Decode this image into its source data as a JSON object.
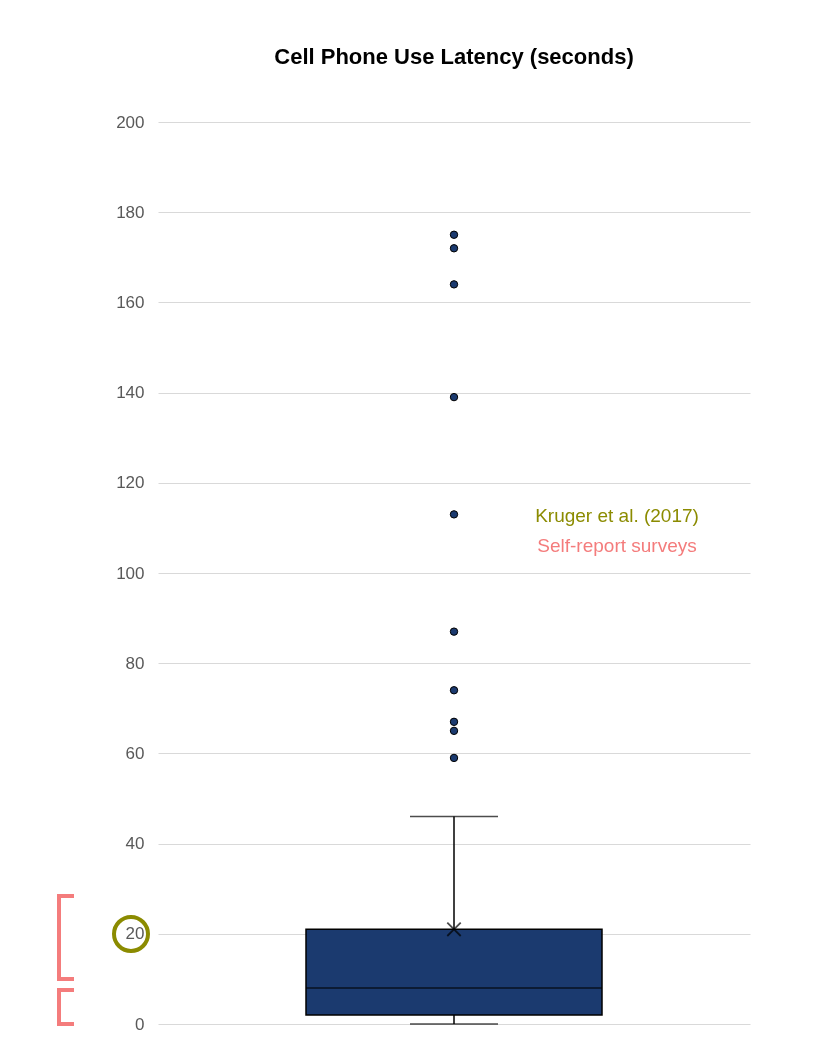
{
  "chart_data": {
    "type": "box",
    "title": "Cell Phone Use Latency (seconds)",
    "categories": [
      null
    ],
    "color": "#1b3a6f",
    "boxes": [
      {
        "low": 0,
        "q1": 2,
        "median": 8,
        "q3": 21,
        "high": 46,
        "mean": 21,
        "outliers": [
          175,
          172,
          164,
          139,
          113,
          87,
          74,
          67,
          65,
          59
        ]
      }
    ],
    "ylim": [
      0,
      200
    ],
    "yticks": [
      0,
      20,
      40,
      60,
      80,
      100,
      120,
      140,
      160,
      180,
      200
    ],
    "grid": "y",
    "tick_labels": "y",
    "annotations": [
      "Kruger et al. (2017)",
      "Self-report surveys"
    ]
  }
}
